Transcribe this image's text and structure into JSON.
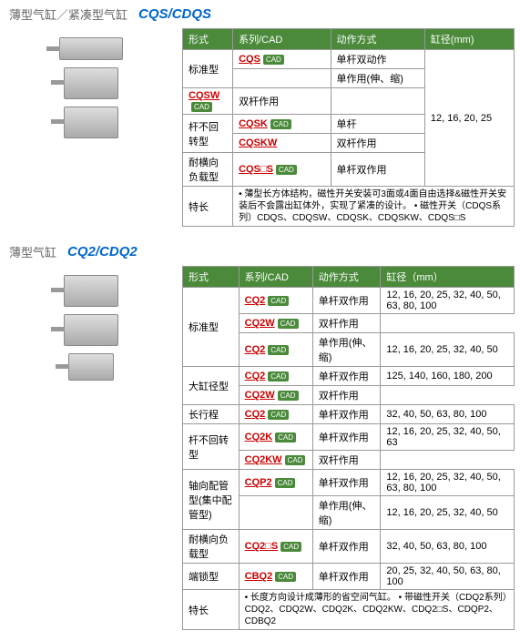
{
  "section1": {
    "title": "薄型气缸／紧凑型气缸",
    "model": "CQS/CDQS",
    "headers": [
      "形式",
      "系列/CAD",
      "动作方式",
      "缸径(mm)"
    ],
    "rows": [
      {
        "type": "标准型",
        "series": "CQS",
        "cad": true,
        "action": "单杆双动作",
        "bore": "12, 16, 20, 25",
        "typespan": 2,
        "borespan": 6
      },
      {
        "series": "",
        "action": "单作用(伸、缩)"
      },
      {
        "type": "",
        "series": "CQSW",
        "cad": true,
        "action": "双杆作用"
      },
      {
        "type": "杆不回转型",
        "series": "CQSK",
        "cad": true,
        "action": "单杆",
        "typespan": 2
      },
      {
        "series": "CQSKW",
        "action": "双杆作用"
      },
      {
        "type": "耐横向负载型",
        "series": "CQS□S",
        "cad": true,
        "action": "单杆双作用"
      }
    ],
    "feature_label": "特长",
    "features": "• 薄型长方体结构，磁性开关安装可3面或4面自由选择&磁性开关安装后不会露出缸体外，实现了紧凑的设计。\n• 磁性开关（CDQS系列）CDQS、CDQSW、CDQSK、CDQSKW、CDQS□S"
  },
  "section2": {
    "title": "薄型气缸",
    "model": "CQ2/CDQ2",
    "headers": [
      "形式",
      "系列/CAD",
      "动作方式",
      "缸径（mm）"
    ],
    "rows": [
      {
        "type": "标准型",
        "series": "CQ2",
        "cad": true,
        "action": "单杆双作用",
        "bore": "12, 16, 20, 25, 32, 40, 50, 63, 80, 100",
        "typespan": 3
      },
      {
        "series": "CQ2W",
        "cad": true,
        "action": "双杆作用"
      },
      {
        "series": "CQ2",
        "cad": true,
        "action": "单作用(伸、缩)",
        "bore": "12, 16, 20, 25, 32, 40, 50"
      },
      {
        "type": "大缸径型",
        "series": "CQ2",
        "cad": true,
        "action": "单杆双作用",
        "bore": "125, 140, 160, 180, 200",
        "typespan": 2
      },
      {
        "series": "CQ2W",
        "cad": true,
        "action": "双杆作用"
      },
      {
        "type": "长行程",
        "series": "CQ2",
        "cad": true,
        "action": "单杆双作用",
        "bore": "32, 40, 50, 63, 80, 100"
      },
      {
        "type": "杆不回转型",
        "series": "CQ2K",
        "cad": true,
        "action": "单杆双作用",
        "bore": "12, 16, 20, 25, 32, 40, 50, 63",
        "typespan": 2
      },
      {
        "series": "CQ2KW",
        "cad": true,
        "action": "双杆作用"
      },
      {
        "type": "轴向配管型(集中配管型)",
        "series": "CQP2",
        "cad": true,
        "action": "单杆双作用",
        "bore": "12, 16, 20, 25, 32, 40, 50, 63, 80, 100",
        "typespan": 2
      },
      {
        "series": "",
        "action": "单作用(伸、缩)",
        "bore": "12, 16, 20, 25, 32, 40, 50"
      },
      {
        "type": "耐横向负载型",
        "series": "CQ2□S",
        "cad": true,
        "action": "单杆双作用",
        "bore": "32, 40, 50, 63, 80, 100"
      },
      {
        "type": "端锁型",
        "series": "CBQ2",
        "cad": true,
        "action": "单杆双作用",
        "bore": "20, 25, 32, 40, 50, 63, 80, 100"
      }
    ],
    "feature_label": "特长",
    "features": "• 长度方向设计成薄形的省空间气缸。\n• 带磁性开关（CDQ2系列）CDQ2、CDQ2W、CDQ2K、CDQ2KW、CDQ2□S、CDQP2、CDBQ2"
  }
}
